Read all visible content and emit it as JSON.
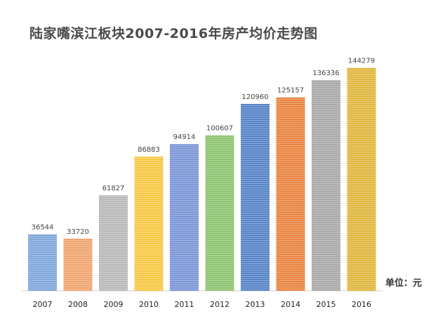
{
  "title": "陆家嘴滨江板块2007-2016年房产均价走势图",
  "unit_label": "单位：元",
  "chart_data": {
    "type": "bar",
    "title": "陆家嘴滨江板块2007-2016年房产均价走势图",
    "xlabel": "",
    "ylabel": "",
    "unit": "元",
    "categories": [
      "2007",
      "2008",
      "2009",
      "2010",
      "2011",
      "2012",
      "2013",
      "2014",
      "2015",
      "2016"
    ],
    "values": [
      36544,
      33720,
      61827,
      86883,
      94914,
      100607,
      120960,
      125157,
      136336,
      144279
    ],
    "value_labels": [
      "36544",
      "33720",
      "61827",
      "86883",
      "94914",
      "100607",
      "120960",
      "125157",
      "136336",
      "144279"
    ],
    "colors": [
      "#7ea6dc",
      "#f0a46e",
      "#b8b8b8",
      "#f7c842",
      "#7a95d6",
      "#8cc36e",
      "#5582c8",
      "#e8833e",
      "#a8a8a8",
      "#e0b63c"
    ],
    "ylim": [
      0,
      150000
    ],
    "grid": false,
    "legend": "none"
  }
}
